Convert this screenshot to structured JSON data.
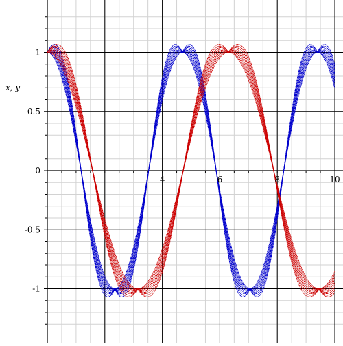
{
  "chart_data": {
    "type": "line",
    "title": "",
    "xlabel": "",
    "ylabel": "x, y",
    "xlim": [
      0,
      10
    ],
    "ylim": [
      -1.42,
      1.42
    ],
    "grid": true,
    "x_ticks": [
      {
        "value": 2,
        "label": ""
      },
      {
        "value": 4,
        "label": "4"
      },
      {
        "value": 6,
        "label": "6"
      },
      {
        "value": 8,
        "label": "8"
      },
      {
        "value": 10,
        "label": "10"
      }
    ],
    "y_ticks": [
      {
        "value": 1,
        "label": "1"
      },
      {
        "value": 0.5,
        "label": "0.5"
      },
      {
        "value": 0,
        "label": "0"
      },
      {
        "value": -0.5,
        "label": "-0.5"
      },
      {
        "value": -1,
        "label": "-1"
      }
    ],
    "series_families": [
      {
        "function": "cos(t) * (1 + a*(1 - cos(t))/2)",
        "color": "#0000cc",
        "t_start": 0,
        "t_end": 10,
        "a_values": [
          0,
          0.05,
          0.1,
          0.15,
          0.2,
          0.25,
          0.3,
          0.35,
          0.4
        ]
      },
      {
        "function": "sin(t + pi/2 + phase) stretched: cos(t - 1.5) with amplitude growth",
        "color": "#cc0000",
        "t_start": 0,
        "t_end": 10,
        "a_values": [
          0,
          0.05,
          0.1,
          0.15,
          0.2,
          0.25,
          0.3,
          0.35,
          0.4
        ]
      }
    ]
  }
}
